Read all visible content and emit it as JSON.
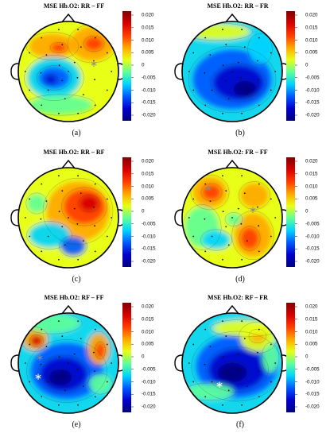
{
  "colorbar": {
    "ticks": [
      "0.020",
      "0.015",
      "0.010",
      "0.005",
      "0",
      "-0.005",
      "-0.010",
      "-0.015",
      "-0.020"
    ],
    "colormap": [
      "#7f0000",
      "#d60000",
      "#ff3c00",
      "#ffa800",
      "#e8ff16",
      "#5fff98",
      "#00d4ff",
      "#0058ff",
      "#0000cc",
      "#00007f"
    ]
  },
  "panels": [
    {
      "title": "MSE Hb.O2: RR – FF",
      "caption": "(a)",
      "asterisks": [
        {
          "color": "gray"
        }
      ]
    },
    {
      "title": "MSE Hb.O2: RR – FR",
      "caption": "(b)",
      "asterisks": []
    },
    {
      "title": "MSE Hb.O2: RR – RF",
      "caption": "(c)",
      "asterisks": []
    },
    {
      "title": "MSE Hb.O2: FR – FF",
      "caption": "(d)",
      "asterisks": [
        {
          "color": "gray"
        },
        {
          "color": "gray"
        }
      ]
    },
    {
      "title": "MSE Hb.O2: RF – FF",
      "caption": "(e)",
      "asterisks": [
        {
          "color": "gray"
        },
        {
          "color": "white"
        }
      ]
    },
    {
      "title": "MSE Hb.O2: RF – FR",
      "caption": "(f)",
      "asterisks": [
        {
          "color": "white"
        }
      ]
    }
  ]
}
